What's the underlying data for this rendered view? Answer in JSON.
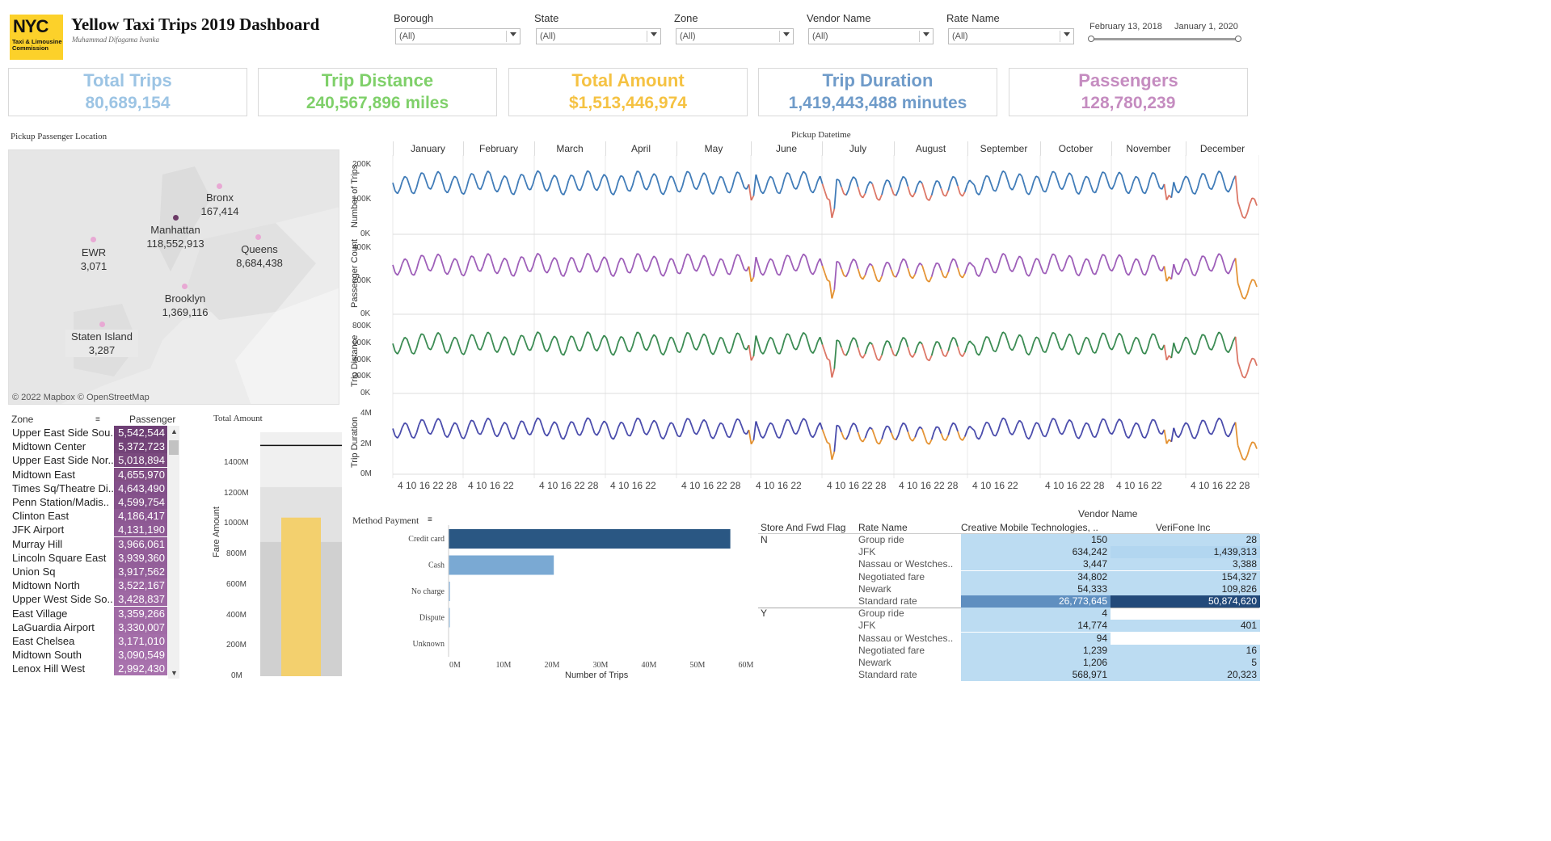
{
  "header": {
    "logo_text": "NYC",
    "logo_sub": "Taxi & Limousine Commission",
    "title": "Yellow Taxi Trips 2019 Dashboard",
    "author": "Muhammad Difagama Ivanka"
  },
  "filters": [
    {
      "label": "Borough",
      "value": "(All)"
    },
    {
      "label": "State",
      "value": "(All)"
    },
    {
      "label": "Zone",
      "value": "(All)"
    },
    {
      "label": "Vendor Name",
      "value": "(All)"
    },
    {
      "label": "Rate Name",
      "value": "(All)"
    }
  ],
  "date_range": {
    "start": "February 13, 2018",
    "end": "January 1, 2020"
  },
  "kpis": [
    {
      "title": "Total Trips",
      "value": "80,689,154",
      "color": "#9cc4e4"
    },
    {
      "title": "Trip Distance",
      "value": "240,567,896 miles",
      "color": "#7fd06a"
    },
    {
      "title": "Total Amount",
      "value": "$1,513,446,974",
      "color": "#f5c242"
    },
    {
      "title": "Trip Duration",
      "value": "1,419,443,488 minutes",
      "color": "#6f9bc9"
    },
    {
      "title": "Passengers",
      "value": "128,780,239",
      "color": "#c58cc0"
    }
  ],
  "map": {
    "title": "Pickup Passenger Location",
    "credit": "© 2022 Mapbox © OpenStreetMap",
    "boroughs": [
      {
        "name": "Bronx",
        "value": "167,414"
      },
      {
        "name": "Manhattan",
        "value": "118,552,913"
      },
      {
        "name": "EWR",
        "value": "3,071"
      },
      {
        "name": "Queens",
        "value": "8,684,438"
      },
      {
        "name": "Brooklyn",
        "value": "1,369,116"
      },
      {
        "name": "Staten Island",
        "value": "3,287"
      }
    ]
  },
  "zone_table": {
    "col_zone": "Zone",
    "col_passenger": "Passenger",
    "rows": [
      {
        "zone": "Upper East Side Sou..",
        "passenger": "5,542,544",
        "color": "#6e3f75"
      },
      {
        "zone": "Midtown Center",
        "passenger": "5,372,723",
        "color": "#734378"
      },
      {
        "zone": "Upper East Side Nor..",
        "passenger": "5,018,894",
        "color": "#7a497e"
      },
      {
        "zone": "Midtown East",
        "passenger": "4,655,970",
        "color": "#824f85"
      },
      {
        "zone": "Times Sq/Theatre Di..",
        "passenger": "4,643,490",
        "color": "#83508a"
      },
      {
        "zone": "Penn Station/Madis..",
        "passenger": "4,599,754",
        "color": "#85528b"
      },
      {
        "zone": "Clinton East",
        "passenger": "4,186,417",
        "color": "#8d5893"
      },
      {
        "zone": "JFK Airport",
        "passenger": "4,131,190",
        "color": "#8f5a95"
      },
      {
        "zone": "Murray Hill",
        "passenger": "3,966,061",
        "color": "#935e98"
      },
      {
        "zone": "Lincoln Square East",
        "passenger": "3,939,360",
        "color": "#935e99"
      },
      {
        "zone": "Union Sq",
        "passenger": "3,917,562",
        "color": "#945f9a"
      },
      {
        "zone": "Midtown North",
        "passenger": "3,522,167",
        "color": "#9c66a1"
      },
      {
        "zone": "Upper West Side So..",
        "passenger": "3,428,837",
        "color": "#9e68a3"
      },
      {
        "zone": "East Village",
        "passenger": "3,359,266",
        "color": "#a06aa5"
      },
      {
        "zone": "LaGuardia Airport",
        "passenger": "3,330,007",
        "color": "#a16ba6"
      },
      {
        "zone": "East Chelsea",
        "passenger": "3,171,010",
        "color": "#a46ea9"
      },
      {
        "zone": "Midtown South",
        "passenger": "3,090,549",
        "color": "#a670ab"
      },
      {
        "zone": "Lenox Hill West",
        "passenger": "2,992,430",
        "color": "#a872ad"
      }
    ]
  },
  "total_amount_chart": {
    "title": "Total Amount",
    "ylabel": "Fare Amount",
    "ticks": [
      "1400M",
      "1200M",
      "1000M",
      "800M",
      "600M",
      "400M",
      "200M",
      "0M"
    ],
    "bar_value": 1040,
    "reference_value": 1513,
    "ymax": 1600,
    "bar_color": "#f3d06e"
  },
  "timeline": {
    "title": "Pickup Datetime",
    "months": [
      "January",
      "February",
      "March",
      "April",
      "May",
      "June",
      "July",
      "August",
      "September",
      "October",
      "November",
      "December"
    ],
    "day_ticks": [
      "4 10 16 22 28",
      "4 10 16 22",
      "4 10 16 22 28",
      "4 10 16 22",
      "4 10 16 22 28",
      "4 10 16 22",
      "4 10 16 22 28",
      "4 10 16 22 28",
      "4 10 16 22",
      "4 10 16 22 28",
      "4 10 16 22",
      "4 10 16 22 28"
    ],
    "panels": [
      {
        "ylabel": "Number of Trips",
        "ticks": [
          "200K",
          "100K",
          "0K"
        ],
        "hi": "#2166ac",
        "lo": "#d6604d"
      },
      {
        "ylabel": "Passenger Count",
        "ticks": [
          "400K",
          "200K",
          "0K"
        ],
        "hi": "#8e44ad",
        "lo": "#e08214"
      },
      {
        "ylabel": "Trip Distance",
        "ticks": [
          "800K",
          "600K",
          "400K",
          "200K",
          "0K"
        ],
        "hi": "#1b7837",
        "lo": "#d6604d"
      },
      {
        "ylabel": "Trip Duration",
        "ticks": [
          "4M",
          "2M",
          "0M"
        ],
        "hi": "#2c2f9e",
        "lo": "#e08214"
      }
    ]
  },
  "payment_chart": {
    "title": "Method Payment",
    "xlabel": "Number of Trips",
    "ticks": [
      "0M",
      "10M",
      "20M",
      "30M",
      "40M",
      "50M",
      "60M"
    ],
    "xmax": 60,
    "bars": [
      {
        "label": "Credit card",
        "value": 58.1,
        "color": "#2a5783"
      },
      {
        "label": "Cash",
        "value": 21.7,
        "color": "#7aa9d3"
      },
      {
        "label": "No charge",
        "value": 0.3,
        "color": "#a7c8e6"
      },
      {
        "label": "Dispute",
        "value": 0.1,
        "color": "#b9d4ec"
      },
      {
        "label": "Unknown",
        "value": 0.0,
        "color": "#c9def1"
      }
    ]
  },
  "vendor_table": {
    "title": "Vendor Name",
    "col_flag": "Store And Fwd Flag",
    "col_rate": "Rate Name",
    "col_v1": "Creative Mobile Technologies, ..",
    "col_v2": "VeriFone Inc",
    "groups": [
      {
        "flag": "N",
        "rows": [
          {
            "rate": "Group ride",
            "v1": "150",
            "v2": "28",
            "c1": "#bcdcf2",
            "c2": "#bcdcf2"
          },
          {
            "rate": "JFK",
            "v1": "634,242",
            "v2": "1,439,313",
            "c1": "#bcdcf2",
            "c2": "#b2d6f0"
          },
          {
            "rate": "Nassau or Westches..",
            "v1": "3,447",
            "v2": "3,388",
            "c1": "#bcdcf2",
            "c2": "#bcdcf2"
          },
          {
            "rate": "Negotiated fare",
            "v1": "34,802",
            "v2": "154,327",
            "c1": "#bcdcf2",
            "c2": "#bcdcf2"
          },
          {
            "rate": "Newark",
            "v1": "54,333",
            "v2": "109,826",
            "c1": "#bcdcf2",
            "c2": "#bcdcf2"
          },
          {
            "rate": "Standard rate",
            "v1": "26,773,645",
            "v2": "50,874,620",
            "c1": "#5f8fc0",
            "c2": "#234a7a"
          }
        ]
      },
      {
        "flag": "Y",
        "rows": [
          {
            "rate": "Group ride",
            "v1": "4",
            "v2": "",
            "c1": "#bcdcf2",
            "c2": ""
          },
          {
            "rate": "JFK",
            "v1": "14,774",
            "v2": "401",
            "c1": "#bcdcf2",
            "c2": "#bcdcf2"
          },
          {
            "rate": "Nassau or Westches..",
            "v1": "94",
            "v2": "",
            "c1": "#bcdcf2",
            "c2": ""
          },
          {
            "rate": "Negotiated fare",
            "v1": "1,239",
            "v2": "16",
            "c1": "#bcdcf2",
            "c2": "#bcdcf2"
          },
          {
            "rate": "Newark",
            "v1": "1,206",
            "v2": "5",
            "c1": "#bcdcf2",
            "c2": "#bcdcf2"
          },
          {
            "rate": "Standard rate",
            "v1": "568,971",
            "v2": "20,323",
            "c1": "#bcdcf2",
            "c2": "#bcdcf2"
          }
        ]
      }
    ]
  }
}
